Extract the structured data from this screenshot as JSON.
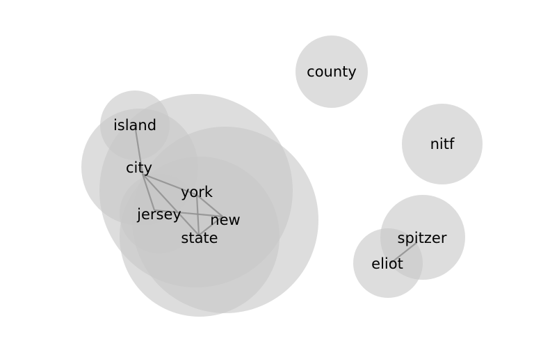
{
  "diagram": {
    "type": "word-cooccurrence-bubbles",
    "colors": {
      "bubble": "#c8c8c8",
      "edge": "#8f8f8f",
      "label": "#000000",
      "background": "#ffffff"
    },
    "terms": [
      {
        "id": "county",
        "label": "county"
      },
      {
        "id": "nitf",
        "label": "nitf"
      },
      {
        "id": "island",
        "label": "island"
      },
      {
        "id": "city",
        "label": "city"
      },
      {
        "id": "york",
        "label": "york"
      },
      {
        "id": "jersey",
        "label": "jersey"
      },
      {
        "id": "new",
        "label": "new"
      },
      {
        "id": "state",
        "label": "state"
      },
      {
        "id": "spitzer",
        "label": "spitzer"
      },
      {
        "id": "eliot",
        "label": "eliot"
      }
    ],
    "edges": [
      [
        "island",
        "city"
      ],
      [
        "city",
        "york"
      ],
      [
        "city",
        "jersey"
      ],
      [
        "city",
        "state"
      ],
      [
        "york",
        "new"
      ],
      [
        "york",
        "state"
      ],
      [
        "jersey",
        "new"
      ],
      [
        "new",
        "state"
      ],
      [
        "spitzer",
        "eliot"
      ]
    ]
  }
}
